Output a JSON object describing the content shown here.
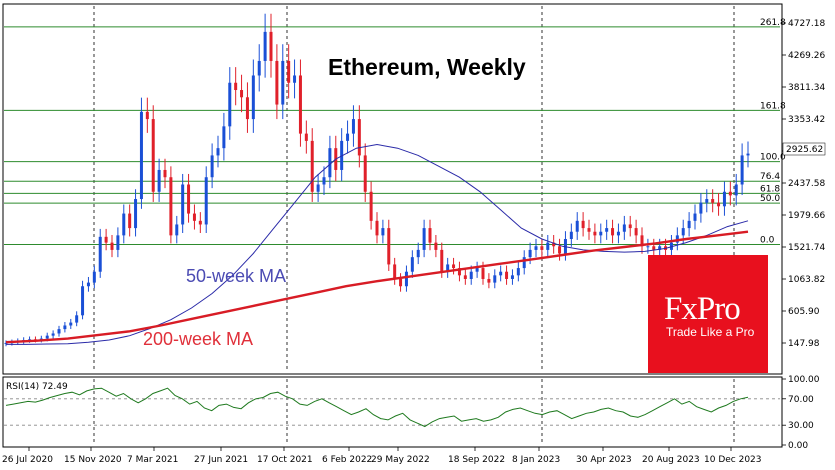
{
  "title": "Ethereum, Weekly",
  "colors": {
    "bull": "#1a4fd6",
    "bear": "#e0202a",
    "ma50": "#2a2aa8",
    "ma200": "#d81c25",
    "fib": "#2e8b2e",
    "rsi": "#1f7a1f",
    "brand_bg": "#e8101e"
  },
  "branding": {
    "logo": "FxPro",
    "tagline": "Trade Like a Pro"
  },
  "chart_data": {
    "type": "candlestick",
    "title": "Ethereum, Weekly",
    "x_labels": [
      "26 Jul 2020",
      "15 Nov 2020",
      "7 Mar 2021",
      "27 Jun 2021",
      "17 Oct 2021",
      "6 Feb 2022",
      "29 May 2022",
      "18 Sep 2022",
      "8 Jan 2023",
      "30 Apr 2023",
      "20 Aug 2023",
      "10 Dec 2023"
    ],
    "y_ticks": [
      "4727.18",
      "4269.26",
      "3811.34",
      "3353.42",
      "2925.62",
      "2437.58",
      "1979.66",
      "1521.74",
      "1063.82",
      "605.90",
      "147.98"
    ],
    "ylim": [
      -80,
      4956
    ],
    "current_price": "2925.62",
    "fibonacci_levels": [
      {
        "label": "261.8",
        "price": 4668
      },
      {
        "label": "161.8",
        "price": 3520
      },
      {
        "label": "100.0",
        "price": 2815
      },
      {
        "label": "76.4",
        "price": 2545
      },
      {
        "label": "61.8",
        "price": 2378
      },
      {
        "label": "50.0",
        "price": 2244
      },
      {
        "label": "0.0",
        "price": 1675
      }
    ],
    "close_series": [
      320,
      330,
      345,
      360,
      370,
      365,
      380,
      420,
      450,
      510,
      560,
      600,
      700,
      1100,
      1150,
      1300,
      1780,
      1700,
      1600,
      1800,
      2100,
      1900,
      2300,
      3500,
      3400,
      2400,
      2700,
      2600,
      1800,
      1950,
      2500,
      2100,
      2000,
      1950,
      2600,
      2900,
      3000,
      3300,
      3900,
      3800,
      3700,
      3400,
      4000,
      4200,
      4600,
      4200,
      3600,
      4200,
      3900,
      4000,
      3200,
      3100,
      2400,
      2500,
      2600,
      3000,
      2700,
      3100,
      3200,
      3400,
      2900,
      2400,
      2000,
      1800,
      1900,
      1400,
      1200,
      1100,
      1300,
      1500,
      1600,
      1900,
      1700,
      1600,
      1300,
      1400,
      1350,
      1250,
      1200,
      1300,
      1350,
      1200,
      1150,
      1250,
      1300,
      1200,
      1250,
      1350,
      1500,
      1600,
      1650,
      1600,
      1700,
      1650,
      1550,
      1750,
      1850,
      2000,
      1900,
      1850,
      1800,
      1850,
      1900,
      1800,
      1850,
      1950,
      1900,
      1800,
      1650,
      1650,
      1600,
      1650,
      1600,
      1700,
      1800,
      1900,
      2000,
      2100,
      2250,
      2300,
      2250,
      2200,
      2400,
      2350,
      2500,
      2900,
      2925
    ],
    "series": [
      {
        "name": "50-week MA",
        "values": [
          300,
          300,
          305,
          310,
          330,
          360,
          420,
          520,
          640,
          800,
          1000,
          1250,
          1550,
          1900,
          2250,
          2600,
          2850,
          3000,
          3050,
          3000,
          2900,
          2750,
          2600,
          2400,
          2150,
          1900,
          1750,
          1650,
          1600,
          1580,
          1570,
          1580,
          1620,
          1700,
          1800,
          1920,
          2000
        ]
      },
      {
        "name": "200-week MA",
        "values": [
          330,
          350,
          380,
          430,
          480,
          560,
          650,
          740,
          830,
          920,
          1010,
          1100,
          1170,
          1230,
          1290,
          1350,
          1410,
          1470,
          1530,
          1590,
          1640,
          1690,
          1750,
          1800,
          1850
        ]
      }
    ],
    "ma_labels": [
      "50-week MA",
      "200-week MA"
    ],
    "rsi": {
      "label": "RSI(14) 72.49",
      "value": 72.49,
      "levels": [
        "100.00",
        "70.00",
        "30.00",
        "0.00"
      ],
      "ylim": [
        0,
        100
      ],
      "values": [
        60,
        62,
        64,
        66,
        65,
        68,
        72,
        75,
        78,
        80,
        76,
        82,
        85,
        86,
        80,
        74,
        78,
        70,
        64,
        70,
        78,
        82,
        86,
        75,
        70,
        62,
        66,
        56,
        52,
        60,
        62,
        57,
        55,
        64,
        70,
        72,
        78,
        80,
        74,
        70,
        62,
        60,
        66,
        70,
        64,
        58,
        52,
        46,
        50,
        55,
        46,
        40,
        38,
        44,
        48,
        38,
        33,
        28,
        35,
        40,
        42,
        44,
        36,
        38,
        40,
        36,
        38,
        42,
        50,
        54,
        56,
        52,
        48,
        46,
        50,
        52,
        46,
        40,
        44,
        48,
        50,
        54,
        56,
        52,
        50,
        44,
        42,
        46,
        52,
        58,
        64,
        70,
        62,
        66,
        58,
        54,
        50,
        56,
        60,
        66,
        70,
        72.49
      ]
    }
  }
}
